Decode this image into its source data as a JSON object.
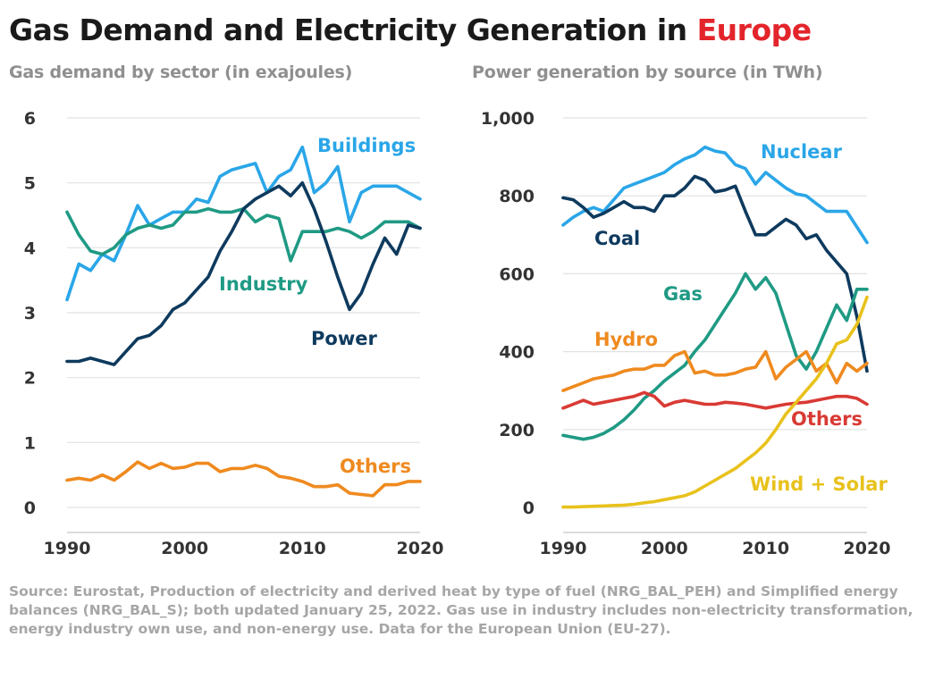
{
  "title": {
    "main": "Gas Demand and Electricity Generation in",
    "highlight": "Europe"
  },
  "source": "Source: Eurostat, Production of electricity and derived heat by type of fuel (NRG_BAL_PEH) and Simplified energy balances (NRG_BAL_S); both updated January 25, 2022. Gas use in industry includes non-electricity transformation, energy industry own use, and non-energy use. Data for the European Union (EU-27).",
  "colors": {
    "accent": "#e3242b",
    "light_blue": "#2aa6e8",
    "dark_blue": "#0e3a5e",
    "teal": "#1f9a84",
    "orange": "#ef8a1f",
    "red": "#d93a34",
    "yellow": "#e8c21c"
  },
  "chart_data": [
    {
      "type": "line",
      "title": "Gas demand by sector (in exajoules)",
      "xlabel": "",
      "ylabel": "",
      "x": [
        1990,
        1991,
        1992,
        1993,
        1994,
        1995,
        1996,
        1997,
        1998,
        1999,
        2000,
        2001,
        2002,
        2003,
        2004,
        2005,
        2006,
        2007,
        2008,
        2009,
        2010,
        2011,
        2012,
        2013,
        2014,
        2015,
        2016,
        2017,
        2018,
        2019,
        2020
      ],
      "xlim": [
        1990,
        2020
      ],
      "ylim": [
        0,
        6
      ],
      "xticks": [
        1990,
        2000,
        2010,
        2020
      ],
      "xtick_labels": [
        "1990",
        "2000",
        "2010",
        "2020"
      ],
      "yticks": [
        0,
        1,
        2,
        3,
        4,
        5,
        6
      ],
      "ytick_labels": [
        "0",
        "1",
        "2",
        "3",
        "4",
        "5",
        "6"
      ],
      "grid": true,
      "series": [
        {
          "name": "Buildings",
          "color": "#2aa6e8",
          "values": [
            3.2,
            3.75,
            3.65,
            3.9,
            3.8,
            4.2,
            4.65,
            4.35,
            4.45,
            4.55,
            4.55,
            4.75,
            4.7,
            5.1,
            5.2,
            5.25,
            5.3,
            4.85,
            5.1,
            5.2,
            5.55,
            4.85,
            5.0,
            5.25,
            4.4,
            4.85,
            4.95,
            4.95,
            4.95,
            4.85,
            4.75
          ]
        },
        {
          "name": "Industry",
          "color": "#1f9a84",
          "values": [
            4.55,
            4.2,
            3.95,
            3.9,
            4.0,
            4.2,
            4.3,
            4.35,
            4.3,
            4.35,
            4.55,
            4.55,
            4.6,
            4.55,
            4.55,
            4.6,
            4.4,
            4.5,
            4.45,
            3.8,
            4.25,
            4.25,
            4.25,
            4.3,
            4.25,
            4.15,
            4.25,
            4.4,
            4.4,
            4.4,
            4.3
          ]
        },
        {
          "name": "Power",
          "color": "#0e3a5e",
          "values": [
            2.25,
            2.25,
            2.3,
            2.25,
            2.2,
            2.4,
            2.6,
            2.65,
            2.8,
            3.05,
            3.15,
            3.35,
            3.55,
            3.95,
            4.25,
            4.6,
            4.75,
            4.85,
            4.95,
            4.8,
            5.0,
            4.6,
            4.1,
            3.55,
            3.05,
            3.3,
            3.75,
            4.15,
            3.9,
            4.35,
            4.3
          ]
        },
        {
          "name": "Others",
          "color": "#ef8a1f",
          "values": [
            0.42,
            0.45,
            0.42,
            0.5,
            0.42,
            0.55,
            0.7,
            0.6,
            0.68,
            0.6,
            0.62,
            0.68,
            0.68,
            0.55,
            0.6,
            0.6,
            0.65,
            0.6,
            0.48,
            0.45,
            0.4,
            0.32,
            0.32,
            0.35,
            0.22,
            0.2,
            0.18,
            0.35,
            0.35,
            0.4,
            0.4
          ]
        }
      ]
    },
    {
      "type": "line",
      "title": "Power generation by source (in TWh)",
      "xlabel": "",
      "ylabel": "",
      "x": [
        1990,
        1991,
        1992,
        1993,
        1994,
        1995,
        1996,
        1997,
        1998,
        1999,
        2000,
        2001,
        2002,
        2003,
        2004,
        2005,
        2006,
        2007,
        2008,
        2009,
        2010,
        2011,
        2012,
        2013,
        2014,
        2015,
        2016,
        2017,
        2018,
        2019,
        2020
      ],
      "xlim": [
        1990,
        2020
      ],
      "ylim": [
        0,
        1000
      ],
      "xticks": [
        1990,
        2000,
        2010,
        2020
      ],
      "xtick_labels": [
        "1990",
        "2000",
        "2010",
        "2020"
      ],
      "yticks": [
        0,
        200,
        400,
        600,
        800,
        1000
      ],
      "ytick_labels": [
        "0",
        "200",
        "400",
        "600",
        "800",
        "1,000"
      ],
      "grid": true,
      "series": [
        {
          "name": "Nuclear",
          "color": "#2aa6e8",
          "values": [
            725,
            745,
            760,
            770,
            760,
            790,
            820,
            830,
            840,
            850,
            860,
            880,
            895,
            905,
            925,
            915,
            910,
            880,
            870,
            830,
            860,
            840,
            820,
            805,
            800,
            780,
            760,
            760,
            760,
            720,
            680
          ]
        },
        {
          "name": "Coal",
          "color": "#0e3a5e",
          "values": [
            795,
            790,
            770,
            745,
            755,
            770,
            785,
            770,
            770,
            760,
            800,
            800,
            820,
            850,
            840,
            810,
            815,
            825,
            760,
            700,
            700,
            720,
            740,
            725,
            690,
            700,
            660,
            630,
            600,
            490,
            350
          ]
        },
        {
          "name": "Gas",
          "color": "#1f9a84",
          "values": [
            185,
            180,
            175,
            180,
            190,
            205,
            225,
            250,
            280,
            300,
            325,
            345,
            365,
            400,
            430,
            470,
            510,
            550,
            600,
            560,
            590,
            550,
            470,
            390,
            355,
            400,
            460,
            520,
            480,
            560,
            560
          ]
        },
        {
          "name": "Hydro",
          "color": "#ef8a1f",
          "values": [
            300,
            310,
            320,
            330,
            335,
            340,
            350,
            355,
            355,
            365,
            365,
            390,
            400,
            345,
            350,
            340,
            340,
            345,
            355,
            360,
            400,
            330,
            360,
            380,
            400,
            350,
            370,
            320,
            370,
            350,
            370
          ]
        },
        {
          "name": "Others",
          "color": "#d93a34",
          "values": [
            255,
            265,
            275,
            265,
            270,
            275,
            280,
            285,
            295,
            285,
            260,
            270,
            275,
            270,
            265,
            265,
            270,
            268,
            265,
            260,
            255,
            260,
            265,
            268,
            270,
            275,
            280,
            285,
            285,
            280,
            265
          ]
        },
        {
          "name": "Wind + Solar",
          "color": "#e8c21c",
          "values": [
            1,
            1,
            2,
            3,
            4,
            5,
            6,
            8,
            12,
            15,
            20,
            25,
            30,
            40,
            55,
            70,
            85,
            100,
            120,
            140,
            165,
            200,
            240,
            270,
            300,
            330,
            370,
            420,
            430,
            470,
            540
          ]
        }
      ]
    }
  ]
}
